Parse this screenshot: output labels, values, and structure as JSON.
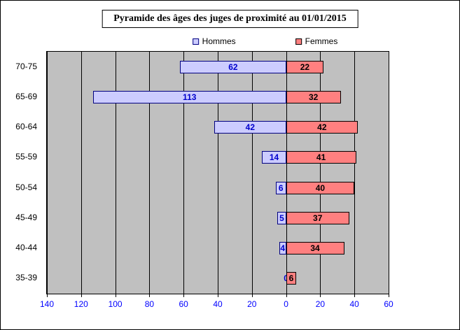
{
  "chart_data": {
    "type": "bar",
    "subtype": "population-pyramid",
    "title": "Pyramide des âges des juges de proximité au 01/01/2015",
    "categories": [
      "70-75",
      "65-69",
      "60-64",
      "55-59",
      "50-54",
      "45-49",
      "40-44",
      "35-39"
    ],
    "series": [
      {
        "name": "Hommes",
        "side": "left",
        "values": [
          62,
          113,
          42,
          14,
          6,
          5,
          4,
          0
        ],
        "fill": "#CCCCFF",
        "border": "#000080",
        "label_color": "#0000CC"
      },
      {
        "name": "Femmes",
        "side": "right",
        "values": [
          22,
          32,
          42,
          41,
          40,
          37,
          34,
          6
        ],
        "fill": "#FF8080",
        "border": "#000000",
        "label_color": "#000000"
      }
    ],
    "x_axis": {
      "left_max": 140,
      "right_max": 60,
      "tick_step": 20,
      "tick_labels": [
        "140",
        "120",
        "100",
        "80",
        "60",
        "40",
        "20",
        "0",
        "20",
        "40",
        "60"
      ],
      "label_color": "#0000FF"
    },
    "xlabel": "",
    "ylabel": "",
    "plot_background": "#C0C0C0",
    "grid": true,
    "legend_position": "top"
  }
}
